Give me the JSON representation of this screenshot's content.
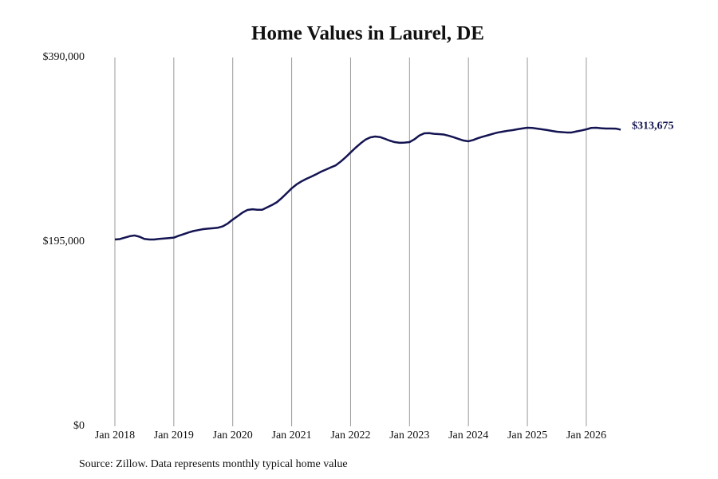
{
  "chart_data": {
    "type": "line",
    "title": "Home Values in Laurel, DE",
    "source": "Source: Zillow. Data represents monthly typical home value",
    "x": [
      "2018-01",
      "2018-02",
      "2018-03",
      "2018-04",
      "2018-05",
      "2018-06",
      "2018-07",
      "2018-08",
      "2018-09",
      "2018-10",
      "2018-11",
      "2018-12",
      "2019-01",
      "2019-02",
      "2019-03",
      "2019-04",
      "2019-05",
      "2019-06",
      "2019-07",
      "2019-08",
      "2019-09",
      "2019-10",
      "2019-11",
      "2019-12",
      "2020-01",
      "2020-02",
      "2020-03",
      "2020-04",
      "2020-05",
      "2020-06",
      "2020-07",
      "2020-08",
      "2020-09",
      "2020-10",
      "2020-11",
      "2020-12",
      "2021-01",
      "2021-02",
      "2021-03",
      "2021-04",
      "2021-05",
      "2021-06",
      "2021-07",
      "2021-08",
      "2021-09",
      "2021-10",
      "2021-11",
      "2021-12",
      "2022-01",
      "2022-02",
      "2022-03",
      "2022-04",
      "2022-05",
      "2022-06",
      "2022-07",
      "2022-08",
      "2022-09",
      "2022-10",
      "2022-11",
      "2022-12",
      "2023-01",
      "2023-02",
      "2023-03",
      "2023-04",
      "2023-05",
      "2023-06",
      "2023-07",
      "2023-08",
      "2023-09",
      "2023-10",
      "2023-11",
      "2023-12",
      "2024-01",
      "2024-02",
      "2024-03",
      "2024-04",
      "2024-05",
      "2024-06",
      "2024-07",
      "2024-08",
      "2024-09",
      "2024-10",
      "2024-11",
      "2024-12",
      "2025-01",
      "2025-02",
      "2025-03",
      "2025-04",
      "2025-05",
      "2025-06",
      "2025-07",
      "2025-08",
      "2025-09",
      "2025-10",
      "2025-11",
      "2025-12",
      "2026-01",
      "2026-02",
      "2026-03",
      "2026-04",
      "2026-05",
      "2026-06",
      "2026-07",
      "2026-08"
    ],
    "series": [
      {
        "name": "Typical home value",
        "color": "#141452",
        "values": [
          197500,
          198000,
          199500,
          201000,
          201800,
          200500,
          198200,
          197500,
          197500,
          198200,
          198600,
          199000,
          199500,
          201500,
          203200,
          205000,
          206500,
          207500,
          208500,
          209000,
          209500,
          210000,
          211500,
          214500,
          218600,
          222200,
          226000,
          228800,
          229500,
          229000,
          229000,
          231500,
          234000,
          237000,
          241500,
          246500,
          251600,
          255800,
          259000,
          261700,
          264000,
          266500,
          269300,
          271500,
          273800,
          276000,
          280000,
          284500,
          289600,
          294500,
          299000,
          303000,
          305500,
          306400,
          305800,
          304000,
          302000,
          300500,
          299800,
          300000,
          300500,
          303500,
          307500,
          309800,
          310000,
          309300,
          309000,
          308500,
          307200,
          305600,
          303800,
          302200,
          301400,
          302800,
          304800,
          306400,
          307800,
          309300,
          310700,
          311600,
          312500,
          313200,
          314100,
          315000,
          315700,
          315500,
          314800,
          314000,
          313300,
          312300,
          311500,
          311100,
          310700,
          310700,
          311800,
          312800,
          314000,
          315500,
          315700,
          315200,
          314900,
          314900,
          314800,
          313675
        ]
      }
    ],
    "last_value_label": "$313,675",
    "xlim": [
      "2018-01",
      "2026-08"
    ],
    "xticks": [
      {
        "value": "2018-01",
        "label": "Jan 2018"
      },
      {
        "value": "2019-01",
        "label": "Jan 2019"
      },
      {
        "value": "2020-01",
        "label": "Jan 2020"
      },
      {
        "value": "2021-01",
        "label": "Jan 2021"
      },
      {
        "value": "2022-01",
        "label": "Jan 2022"
      },
      {
        "value": "2023-01",
        "label": "Jan 2023"
      },
      {
        "value": "2024-01",
        "label": "Jan 2024"
      },
      {
        "value": "2025-01",
        "label": "Jan 2025"
      },
      {
        "value": "2026-01",
        "label": "Jan 2026"
      }
    ],
    "ylim": [
      0,
      390000
    ],
    "yticks": [
      {
        "value": 0,
        "label": "$0"
      },
      {
        "value": 195000,
        "label": "$195,000"
      },
      {
        "value": 390000,
        "label": "$390,000"
      }
    ],
    "grid": "x"
  }
}
